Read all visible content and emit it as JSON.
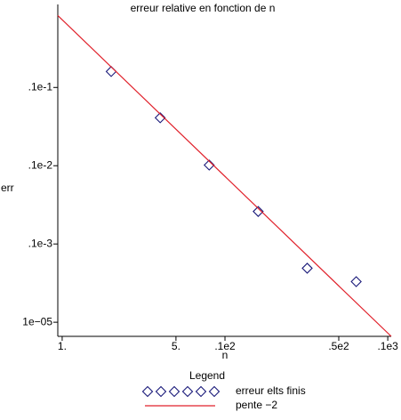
{
  "chart_data": {
    "type": "scatter",
    "title": "erreur relative en fonction de n",
    "xlabel": "n",
    "ylabel": "err",
    "xscale": "log",
    "yscale": "log",
    "xlim": [
      0.94,
      105
    ],
    "ylim": [
      6.6e-06,
      0.115
    ],
    "xticks": [
      {
        "value": 1,
        "label": "1."
      },
      {
        "value": 5,
        "label": "5."
      },
      {
        "value": 10,
        "label": ".1e2"
      },
      {
        "value": 50,
        "label": ".5e2"
      },
      {
        "value": 100,
        "label": ".1e3"
      }
    ],
    "yticks": [
      {
        "value": 0.01,
        "label": ".1e-1"
      },
      {
        "value": 0.001,
        "label": ".1e-2"
      },
      {
        "value": 0.0001,
        "label": ".1e-3"
      },
      {
        "value": 1e-05,
        "label": "1e−05"
      }
    ],
    "legend_title": "Legend",
    "series": [
      {
        "name": "erreur elts finis",
        "style": "diamond",
        "color": "#1a1a7a",
        "x": [
          2,
          4,
          8,
          16,
          32,
          64
        ],
        "values": [
          0.016,
          0.0041,
          0.00102,
          0.00026,
          4.9e-05,
          3.3e-05
        ]
      },
      {
        "name": "pente −2",
        "style": "line",
        "color": "#e0202a",
        "x": [
          0.94,
          105
        ],
        "values": [
          0.083,
          6.6e-06
        ]
      }
    ]
  }
}
